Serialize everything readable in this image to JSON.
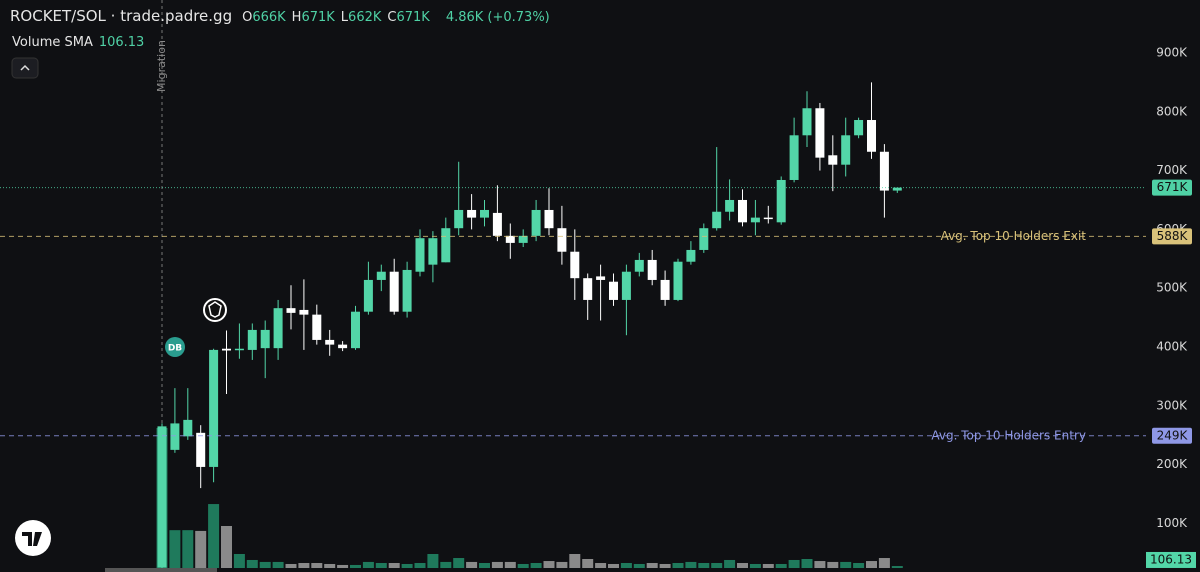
{
  "chart_data": {
    "type": "candlestick",
    "header": {
      "pair": "ROCKET/SOL · trade.padre.gg",
      "ohlc": [
        {
          "key": "O",
          "value": "666K"
        },
        {
          "key": "H",
          "value": "671K"
        },
        {
          "key": "L",
          "value": "662K"
        },
        {
          "key": "C",
          "value": "671K"
        }
      ],
      "change": "4.86K (+0.73%)"
    },
    "volume_sma": {
      "label": "Volume SMA",
      "value": 106.13
    },
    "migration_label": "Migration",
    "marker_label": "DB",
    "ylim": [
      17300,
      990100
    ],
    "yticks": [
      {
        "value": 100000,
        "label": "100K"
      },
      {
        "value": 200000,
        "label": "200K"
      },
      {
        "value": 300000,
        "label": "300K"
      },
      {
        "value": 400000,
        "label": "400K"
      },
      {
        "value": 500000,
        "label": "500K"
      },
      {
        "value": 600000,
        "label": "600K"
      },
      {
        "value": 700000,
        "label": "700K"
      },
      {
        "value": 800000,
        "label": "800K"
      },
      {
        "value": 900000,
        "label": "900K"
      }
    ],
    "price_lines": [
      {
        "value": 671000,
        "label": "671K",
        "color": "#4fd1a5",
        "style": "dotted"
      },
      {
        "value": 588000,
        "label": "588K",
        "text": "Avg. Top 10 Holders Exit",
        "color": "#d9c27a",
        "style": "dashed"
      },
      {
        "value": 249000,
        "label": "249K",
        "text": "Avg. Top 10 Holders Entry",
        "color": "#8f98e6",
        "style": "dashed"
      }
    ],
    "up_color": "#53d6a8",
    "down_color": "#ffffff",
    "volume_up_color": "#1f7a5c",
    "volume_down_color": "#8a8a8a",
    "open": [
      25000,
      225000,
      248000,
      254000,
      196000,
      397000,
      395000,
      395000,
      398000,
      398000,
      466000,
      463000,
      455000,
      412000,
      404000,
      398000,
      460000,
      514000,
      528000,
      460000,
      528000,
      540000,
      544000,
      602000,
      633000,
      620000,
      628000,
      589000,
      577000,
      589000,
      633000,
      602000,
      562000,
      517000,
      520000,
      511000,
      480000,
      528000,
      548000,
      514000,
      480000,
      545000,
      565000,
      602000,
      630000,
      650000,
      612000,
      620000,
      612000,
      684000,
      760000,
      806000,
      726000,
      710000,
      760000,
      786000,
      732000,
      666000
    ],
    "high": [
      270000,
      330000,
      330000,
      267000,
      397000,
      428000,
      440000,
      440000,
      445000,
      480000,
      505000,
      515000,
      472000,
      429000,
      410000,
      470000,
      545000,
      540000,
      550000,
      545000,
      600000,
      597000,
      620000,
      715000,
      660000,
      650000,
      675000,
      610000,
      600000,
      650000,
      670000,
      640000,
      600000,
      525000,
      540000,
      525000,
      540000,
      560000,
      565000,
      530000,
      550000,
      580000,
      610000,
      740000,
      685000,
      668000,
      650000,
      640000,
      690000,
      790000,
      835000,
      815000,
      760000,
      790000,
      790000,
      850000,
      745000,
      671000
    ],
    "low": [
      20000,
      220000,
      242000,
      160000,
      170000,
      320000,
      380000,
      378000,
      347000,
      378000,
      430000,
      395000,
      404000,
      385000,
      393000,
      395000,
      455000,
      495000,
      455000,
      450000,
      520000,
      510000,
      544000,
      590000,
      600000,
      605000,
      580000,
      550000,
      570000,
      580000,
      590000,
      540000,
      480000,
      446000,
      445000,
      470000,
      420000,
      520000,
      505000,
      470000,
      478000,
      540000,
      560000,
      598000,
      615000,
      605000,
      590000,
      610000,
      608000,
      680000,
      740000,
      700000,
      665000,
      690000,
      755000,
      720000,
      620000,
      662000
    ],
    "close": [
      265000,
      270000,
      276000,
      196000,
      395000,
      394000,
      397000,
      429000,
      429000,
      466000,
      458000,
      455000,
      412000,
      404000,
      398000,
      460000,
      514000,
      528000,
      460000,
      531000,
      585000,
      585000,
      602000,
      633000,
      620000,
      633000,
      589000,
      577000,
      589000,
      633000,
      602000,
      562000,
      517000,
      480000,
      514000,
      480000,
      528000,
      548000,
      514000,
      480000,
      545000,
      565000,
      602000,
      630000,
      650000,
      612000,
      620000,
      618000,
      684000,
      760000,
      806000,
      722000,
      710000,
      760000,
      786000,
      732000,
      666000,
      671000
    ],
    "volume": [
      1850,
      500,
      500,
      490,
      845,
      555,
      185,
      106,
      80,
      80,
      53,
      66,
      66,
      53,
      40,
      40,
      80,
      66,
      66,
      53,
      66,
      185,
      80,
      132,
      80,
      66,
      80,
      80,
      53,
      66,
      92,
      80,
      185,
      119,
      66,
      53,
      66,
      53,
      66,
      53,
      66,
      80,
      66,
      66,
      106,
      66,
      53,
      53,
      53,
      106,
      119,
      92,
      80,
      80,
      66,
      92,
      132,
      26
    ]
  }
}
